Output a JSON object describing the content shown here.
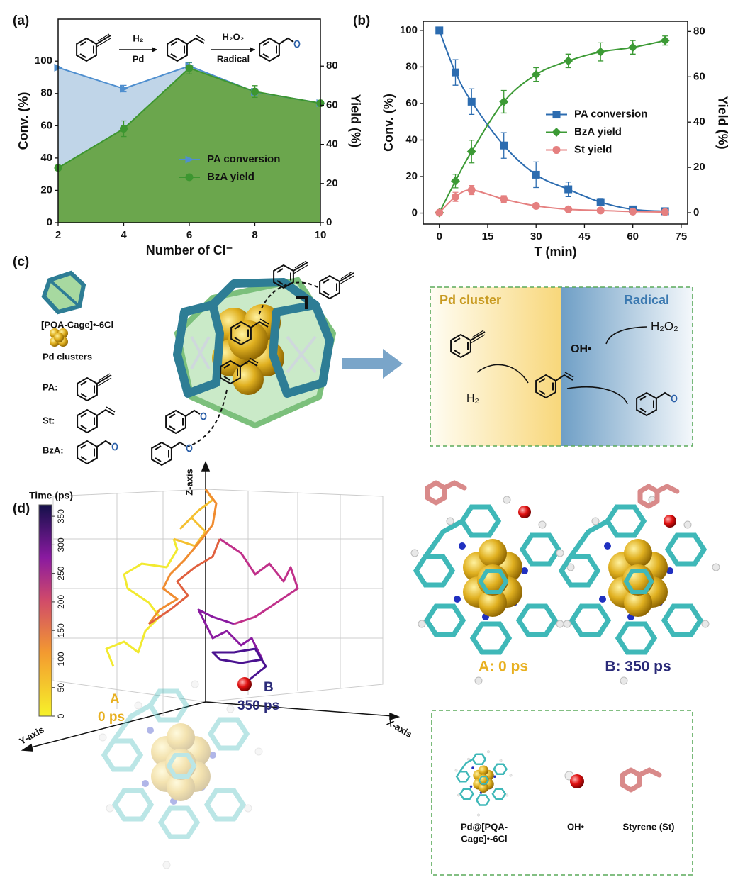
{
  "chart_data": [
    {
      "type": "line",
      "panel_label": "(a)",
      "annotations": [
        "H₂",
        "Pd",
        "H₂O₂",
        "Radical"
      ],
      "x_label": "Number of Cl⁻",
      "y_label": "Conv. (%)",
      "y2_label": "Yield (%)",
      "x": [
        2,
        4,
        6,
        8,
        10
      ],
      "xlim": [
        2,
        10
      ],
      "xticks": [
        2,
        4,
        6,
        8,
        10
      ],
      "ylim": [
        0,
        126
      ],
      "yticks": [
        0,
        20,
        40,
        60,
        80,
        100
      ],
      "y2lim": [
        0,
        104
      ],
      "y2ticks": [
        0,
        20,
        40,
        60,
        80
      ],
      "area": true,
      "smooth": false,
      "legend": "lower right",
      "series": [
        {
          "name": "PA conversion",
          "color": "#4f8fcf",
          "fill": "#b9d0e6",
          "marker": "triangle-right",
          "values": [
            96,
            83,
            97,
            81,
            74
          ],
          "errors": [
            0,
            2,
            2,
            2,
            1
          ]
        },
        {
          "name": "BzA yield",
          "color": "#3d9630",
          "fill": "#62a13c",
          "marker": "circle",
          "axis": "y2",
          "values": [
            28,
            48,
            79,
            67,
            61
          ],
          "errors": [
            0,
            4,
            3,
            3,
            1
          ]
        }
      ]
    },
    {
      "type": "line",
      "panel_label": "(b)",
      "x_label": "T (min)",
      "y_label": "Conv. (%)",
      "y2_label": "Yield (%)",
      "x": [
        0,
        5,
        10,
        20,
        30,
        40,
        50,
        60,
        70
      ],
      "xlim": [
        -5,
        77
      ],
      "xticks": [
        0,
        15,
        30,
        45,
        60,
        75
      ],
      "ylim": [
        -6,
        105
      ],
      "yticks": [
        0,
        20,
        40,
        60,
        80,
        100
      ],
      "y2lim": [
        -5,
        84.5
      ],
      "y2ticks": [
        0,
        20,
        40,
        60,
        80
      ],
      "area": false,
      "smooth": true,
      "legend": "center right",
      "series": [
        {
          "name": "PA conversion",
          "color": "#2c6cb0",
          "marker": "square",
          "values": [
            100,
            77,
            61,
            37,
            21,
            13,
            6,
            2,
            1
          ],
          "errors": [
            0,
            7,
            7,
            7,
            7,
            4,
            2,
            1,
            0
          ]
        },
        {
          "name": "BzA yield",
          "color": "#3c9a35",
          "marker": "diamond",
          "axis": "y2",
          "values": [
            0,
            14,
            27,
            49,
            61,
            67,
            71,
            73,
            76
          ],
          "errors": [
            0,
            3,
            5,
            5,
            3,
            3,
            4,
            3,
            2
          ]
        },
        {
          "name": "St yield",
          "color": "#e58080",
          "marker": "circle",
          "axis": "y2",
          "values": [
            0,
            7,
            10,
            6,
            3,
            1.5,
            1,
            0.5,
            0.3
          ],
          "errors": [
            0,
            2,
            2,
            1.5,
            1,
            0.5,
            0.3,
            0.3,
            0.2
          ]
        }
      ]
    }
  ],
  "panel_c": {
    "label": "(c)",
    "cage": "[PQA-Cage]•-6Cl",
    "pd": "Pd clusters",
    "pa": "PA:",
    "st": "St:",
    "bza": "BzA:",
    "box": {
      "left": "Pd cluster",
      "right": "Radical",
      "h2o2": "H₂O₂",
      "oh": "OH•",
      "h2": "H₂"
    }
  },
  "panel_d": {
    "label": "(d)",
    "colorbar": {
      "title": "Time (ps)",
      "lim": [
        0,
        370
      ],
      "ticks": [
        0,
        50,
        100,
        150,
        200,
        250,
        300,
        350
      ]
    },
    "axes": {
      "z": "Z-axis",
      "y": "Y-axis",
      "x": "X-axis"
    },
    "start": {
      "label": "A",
      "time": "0 ps"
    },
    "end": {
      "label": "B",
      "time": "350 ps"
    },
    "snapshots": [
      "A: 0 ps",
      "B: 350 ps"
    ],
    "legend": {
      "cage": [
        "Pd@[PQA-",
        "Cage]•-6Cl"
      ],
      "oh": "OH•",
      "styrene": "Styrene (St)"
    }
  }
}
